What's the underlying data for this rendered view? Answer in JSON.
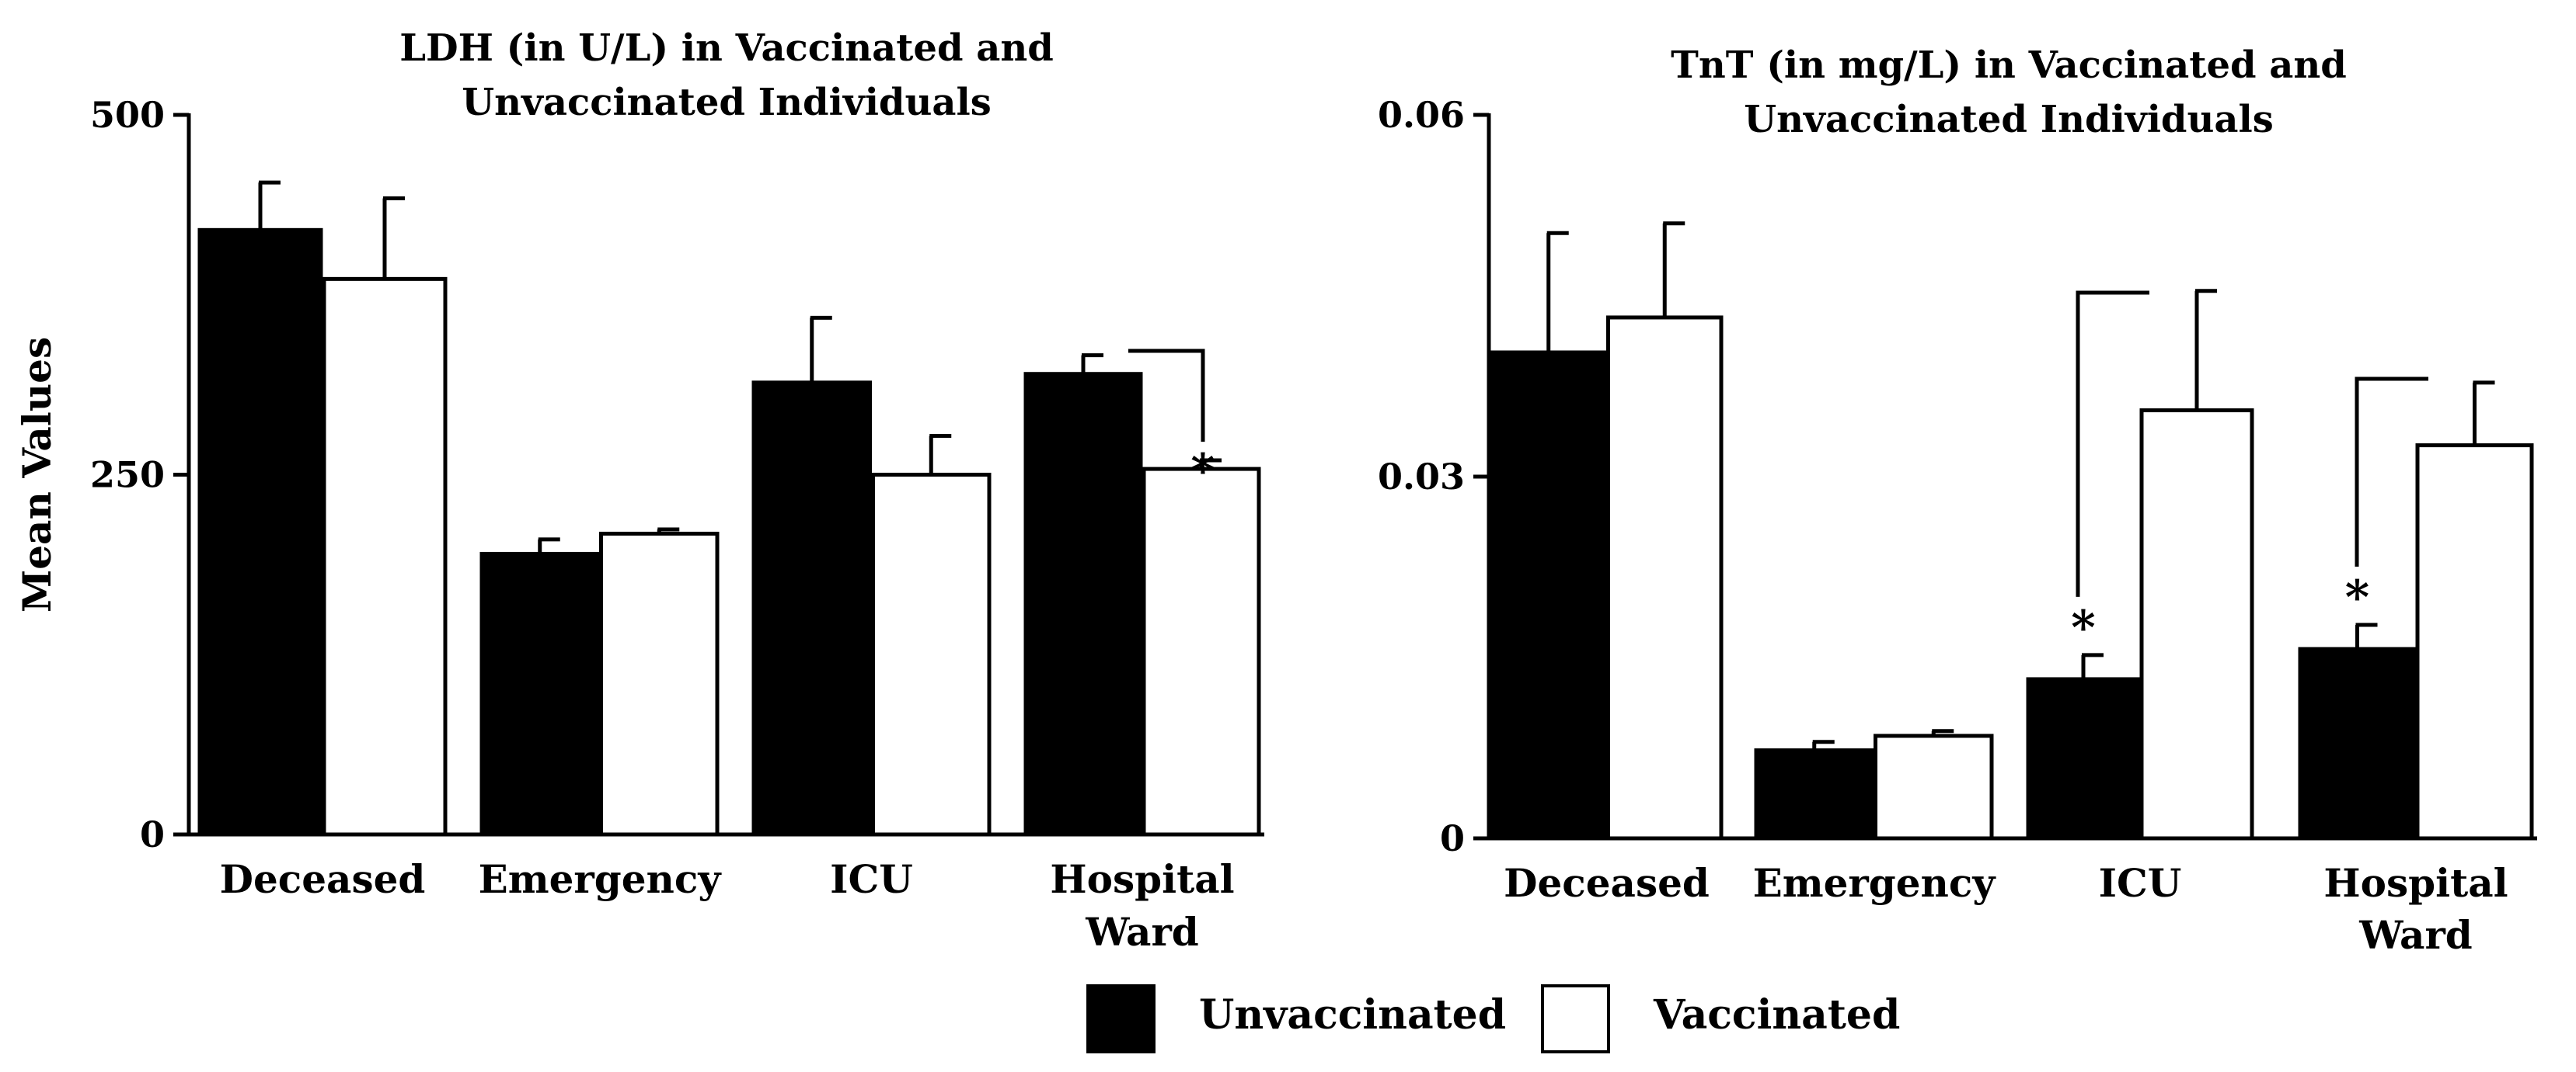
{
  "figure": {
    "legend": [
      {
        "label": "Unvaccinated",
        "color": "#000000"
      },
      {
        "label": "Vaccinated",
        "color": "#ffffff"
      }
    ]
  },
  "chart_data": [
    {
      "type": "bar",
      "title_lines": [
        "LDH (in U/L) in Vaccinated and",
        "Unvaccinated  Individuals"
      ],
      "ylabel": "Mean Values",
      "ylim": [
        0,
        500
      ],
      "yticks": [
        0,
        250,
        500
      ],
      "ytick_labels": [
        "0",
        "250",
        "500"
      ],
      "categories": [
        [
          "Deceased"
        ],
        [
          "Emergency"
        ],
        [
          "ICU"
        ],
        [
          "Hospital",
          "Ward"
        ]
      ],
      "series": [
        {
          "name": "Unvaccinated",
          "values": [
            420,
            195,
            314,
            320
          ],
          "errors": [
            33,
            10,
            45,
            13
          ]
        },
        {
          "name": "Vaccinated",
          "values": [
            386,
            209,
            250,
            254
          ],
          "errors": [
            56,
            3,
            27,
            6
          ]
        }
      ],
      "significance": [
        {
          "category_index": 3,
          "marker": "*"
        }
      ]
    },
    {
      "type": "bar",
      "title_lines": [
        "TnT (in mg/L) in Vaccinated and",
        "Unvaccinated  Individuals"
      ],
      "ylabel": "",
      "ylim": [
        0,
        0.06
      ],
      "yticks": [
        0,
        0.03,
        0.06
      ],
      "ytick_labels": [
        "0",
        "0.03",
        "0.06"
      ],
      "categories": [
        [
          "Deceased"
        ],
        [
          "Emergency"
        ],
        [
          "ICU"
        ],
        [
          "Hospital",
          "Ward"
        ]
      ],
      "series": [
        {
          "name": "Unvaccinated",
          "values": [
            0.0403,
            0.0073,
            0.0132,
            0.0157
          ],
          "errors": [
            0.0099,
            0.0007,
            0.002,
            0.002
          ]
        },
        {
          "name": "Vaccinated",
          "values": [
            0.0432,
            0.0085,
            0.0355,
            0.0326
          ],
          "errors": [
            0.0078,
            0.0004,
            0.0099,
            0.0052
          ]
        }
      ],
      "significance": [
        {
          "category_index": 2,
          "marker": "*"
        },
        {
          "category_index": 3,
          "marker": "*"
        }
      ]
    }
  ]
}
